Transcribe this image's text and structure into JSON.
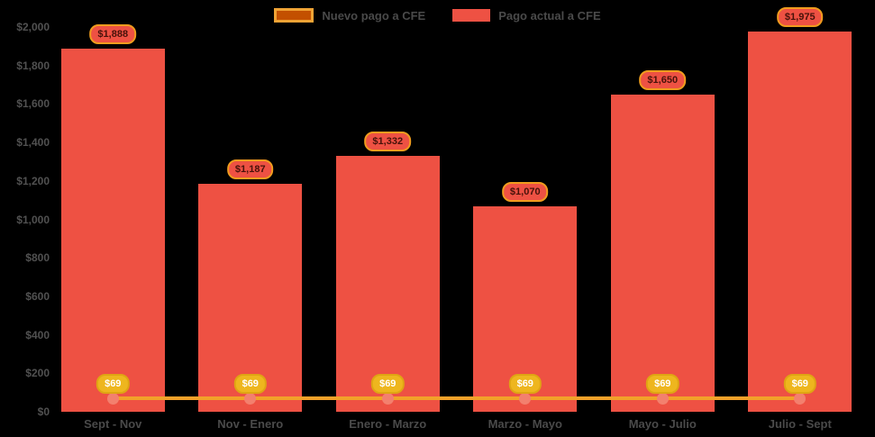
{
  "page": {
    "background": "#000000"
  },
  "legend": {
    "text_color": "#4a4a4a",
    "items": [
      {
        "id": "nuevo-pago",
        "label": "Nuevo pago a CFE",
        "swatch_fill": "#c35000",
        "swatch_border": "#f0a335"
      },
      {
        "id": "pago-actual",
        "label": "Pago actual a CFE",
        "swatch_fill": "#ee5143"
      }
    ]
  },
  "chart_data": {
    "type": "bar",
    "title": "",
    "xlabel": "",
    "ylabel": "",
    "categories": [
      "Sept - Nov",
      "Nov - Enero",
      "Enero - Marzo",
      "Marzo - Mayo",
      "Mayo - Julio",
      "Julio - Sept"
    ],
    "series": [
      {
        "name": "Pago actual a CFE",
        "type": "column",
        "color": "#ee5143",
        "values": [
          1888,
          1187,
          1332,
          1070,
          1650,
          1975
        ],
        "data_labels": [
          "$1,888",
          "$1,187",
          "$1,332",
          "$1,070",
          "$1,650",
          "$1,975"
        ]
      },
      {
        "name": "Nuevo pago a CFE",
        "type": "line",
        "color": "#f2a129",
        "marker_color": "#f3806e",
        "values": [
          69,
          69,
          69,
          69,
          69,
          69
        ],
        "data_labels": [
          "$69",
          "$69",
          "$69",
          "$69",
          "$69",
          "$69"
        ]
      }
    ],
    "ylim": [
      0,
      2000
    ],
    "ytick_step": 200,
    "ytick_labels": [
      "$0",
      "$200",
      "$400",
      "$600",
      "$800",
      "$1,000",
      "$1,200",
      "$1,400",
      "$1,600",
      "$1,800",
      "$2,000"
    ],
    "grid": false,
    "legend_position": "top",
    "axis_text_color": "#515151",
    "background": "#000000"
  },
  "styles": {
    "bar_label_pill": {
      "bg": "#ee5143",
      "border": "#f09c1e",
      "text": "#47120a"
    },
    "line_label_pill": {
      "bg": "#eeb61e",
      "border": "#dfa513",
      "text": "#ffffff"
    }
  }
}
